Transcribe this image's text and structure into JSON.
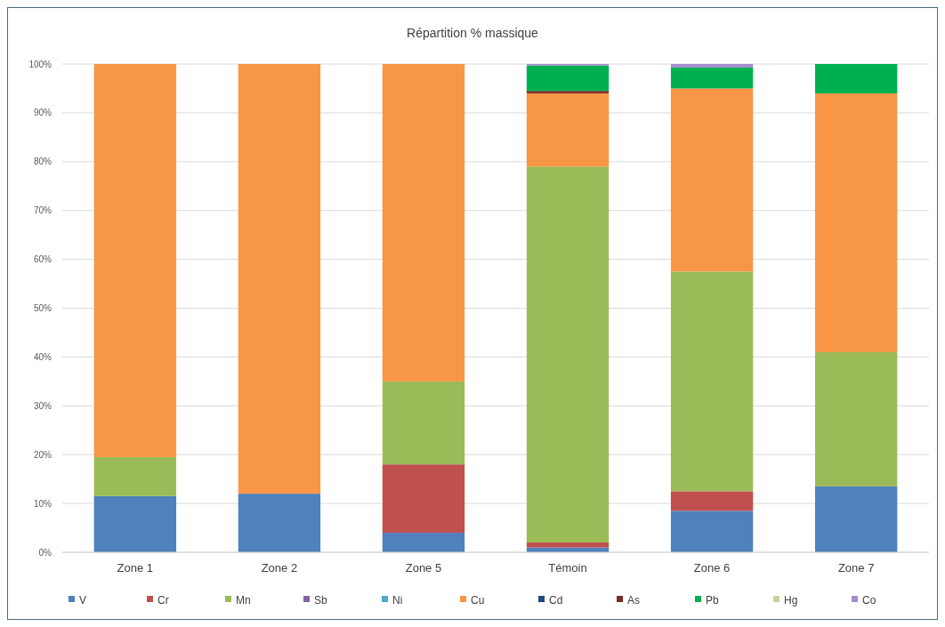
{
  "chart_data": {
    "type": "bar",
    "title": "Répartition % massique",
    "stacked": true,
    "categories": [
      "Zone 1",
      "Zone 2",
      "Zone 5",
      "Témoin",
      "Zone 6",
      "Zone 7"
    ],
    "series": [
      {
        "name": "V",
        "color": "#4f81bd",
        "values": [
          11.5,
          12,
          4,
          1,
          8.5,
          13.5
        ]
      },
      {
        "name": "Cr",
        "color": "#c0504d",
        "values": [
          0,
          0,
          14,
          1,
          4,
          0
        ]
      },
      {
        "name": "Mn",
        "color": "#9bbb59",
        "values": [
          8,
          0,
          17,
          77,
          45,
          27.5
        ]
      },
      {
        "name": "Sb",
        "color": "#8064a2",
        "values": [
          0,
          0,
          0,
          0,
          0,
          0
        ]
      },
      {
        "name": "Ni",
        "color": "#4bacc6",
        "values": [
          0,
          0,
          0,
          0,
          0,
          0
        ]
      },
      {
        "name": "Cu",
        "color": "#f79646",
        "values": [
          80.5,
          88,
          65,
          15,
          37.5,
          53
        ]
      },
      {
        "name": "Cd",
        "color": "#1f497d",
        "values": [
          0,
          0,
          0,
          0,
          0,
          0
        ]
      },
      {
        "name": "As",
        "color": "#772c2a",
        "values": [
          0,
          0,
          0,
          0.5,
          0,
          0
        ]
      },
      {
        "name": "Pb",
        "color": "#00b050",
        "values": [
          0,
          0,
          0,
          5.2,
          4.3,
          6
        ]
      },
      {
        "name": "Hg",
        "color": "#c3d69b",
        "values": [
          0,
          0,
          0,
          0,
          0,
          0
        ]
      },
      {
        "name": "Co",
        "color": "#a58bd1",
        "values": [
          0,
          0,
          0,
          0.3,
          0.7,
          0
        ]
      }
    ],
    "ylim": [
      0,
      100
    ],
    "yticks": [
      {
        "value": 0,
        "label": "0%"
      },
      {
        "value": 10,
        "label": "10%"
      },
      {
        "value": 20,
        "label": "20%"
      },
      {
        "value": 30,
        "label": "30%"
      },
      {
        "value": 40,
        "label": "40%"
      },
      {
        "value": 50,
        "label": "50%"
      },
      {
        "value": 60,
        "label": "60%"
      },
      {
        "value": 70,
        "label": "70%"
      },
      {
        "value": 80,
        "label": "80%"
      },
      {
        "value": 90,
        "label": "90%"
      },
      {
        "value": 100,
        "label": "100%"
      }
    ],
    "grid": "y",
    "legend": "bottom"
  }
}
